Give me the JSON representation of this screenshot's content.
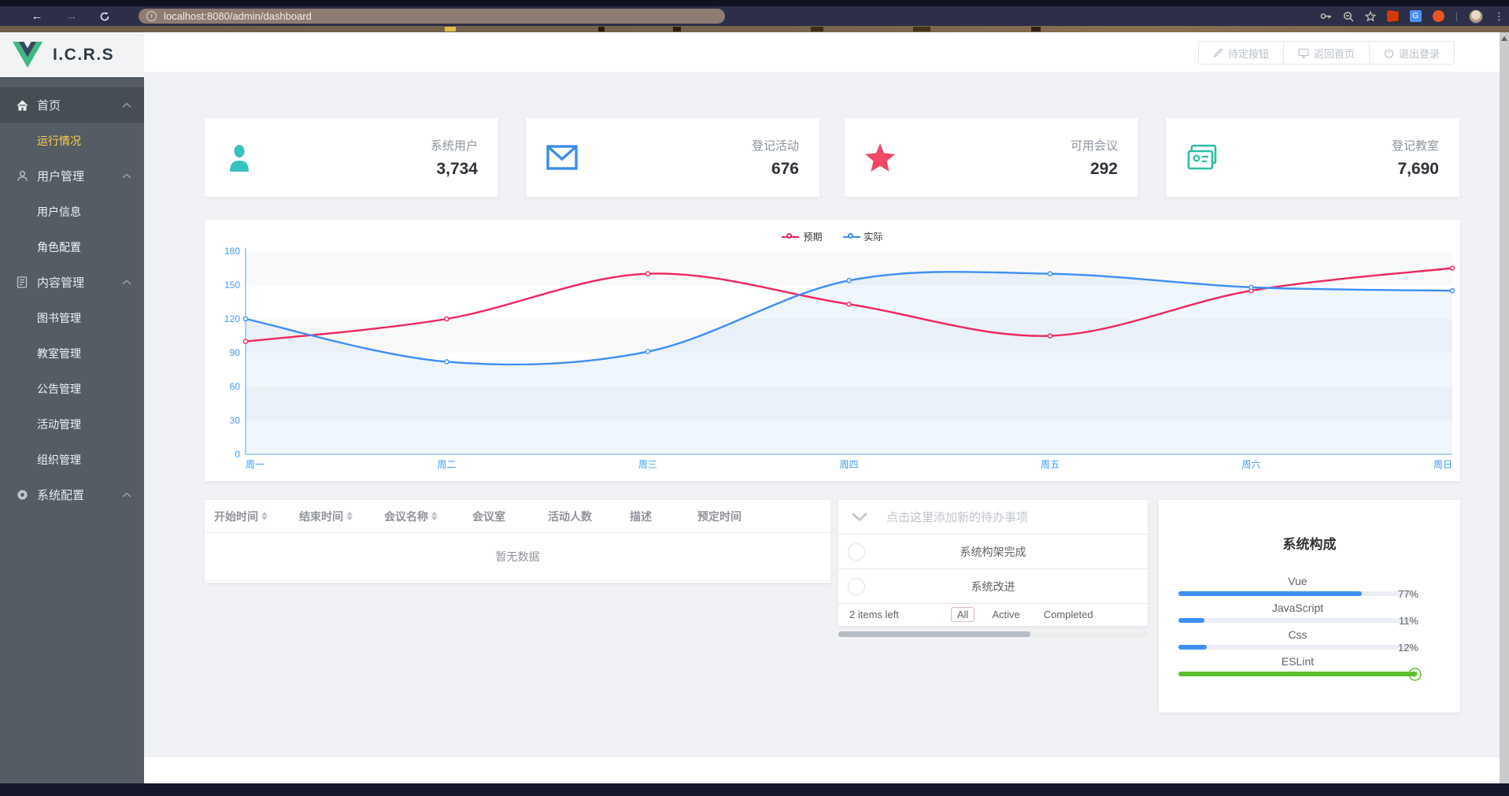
{
  "browser": {
    "url": "localhost:8080/admin/dashboard",
    "info_glyph": "i",
    "nav": {
      "back": "←",
      "forward": "→"
    },
    "right_icons": [
      "key-icon",
      "zoom-out-icon",
      "bookmark-star-icon",
      "office-extension-icon",
      "translate-extension-icon",
      "browser-extension-icon",
      "profile-avatar",
      "menu-dots-icon"
    ],
    "translate_glyph": "G",
    "dots_glyph": "⋮",
    "separator": "|"
  },
  "sidebar": {
    "logo_text": "I.C.R.S",
    "menu": [
      {
        "label": "首页",
        "type": "section",
        "icon": "home-icon",
        "state": "open"
      },
      {
        "label": "运行情况",
        "type": "sub",
        "active": true
      },
      {
        "label": "用户管理",
        "type": "section",
        "icon": "user-icon"
      },
      {
        "label": "用户信息",
        "type": "sub"
      },
      {
        "label": "角色配置",
        "type": "sub"
      },
      {
        "label": "内容管理",
        "type": "section",
        "icon": "document-icon"
      },
      {
        "label": "图书管理",
        "type": "sub"
      },
      {
        "label": "教室管理",
        "type": "sub"
      },
      {
        "label": "公告管理",
        "type": "sub"
      },
      {
        "label": "活动管理",
        "type": "sub"
      },
      {
        "label": "组织管理",
        "type": "sub"
      },
      {
        "label": "系统配置",
        "type": "section",
        "icon": "gear-icon"
      }
    ]
  },
  "header": {
    "buttons": [
      {
        "label": "待定按钮",
        "icon": "pencil-icon"
      },
      {
        "label": "返回首页",
        "icon": "monitor-icon"
      },
      {
        "label": "退出登录",
        "icon": "power-icon"
      }
    ]
  },
  "stat_cards": [
    {
      "label": "系统用户",
      "value": "3,734",
      "icon": "person-icon",
      "color": "#35c3bd"
    },
    {
      "label": "登记活动",
      "value": "676",
      "icon": "envelope-icon",
      "color": "#3a8ee6"
    },
    {
      "label": "可用会议",
      "value": "292",
      "icon": "star-icon",
      "color": "#f04864"
    },
    {
      "label": "登记教室",
      "value": "7,690",
      "icon": "cards-icon",
      "color": "#2bbfa4"
    }
  ],
  "chart_data": {
    "type": "line",
    "categories": [
      "周一",
      "周二",
      "周三",
      "周四",
      "周五",
      "周六",
      "周日"
    ],
    "series": [
      {
        "name": "预期",
        "color": "#f0265f",
        "values": [
          100,
          120,
          160,
          133,
          105,
          145,
          165
        ],
        "area": false
      },
      {
        "name": "实际",
        "color": "#3e8ef7",
        "values": [
          120,
          82,
          91,
          154,
          160,
          148,
          145
        ],
        "area": true
      }
    ],
    "title": "",
    "xlabel": "",
    "ylabel": "",
    "ylim": [
      0,
      180
    ],
    "ytick_interval": 30,
    "legend_position": "top",
    "grid": "horizontal-bands",
    "axis_color": "#5ba1f3",
    "tick_label_color": "#3f9bfa",
    "area_fill": "rgba(62,142,247,0.08)"
  },
  "table": {
    "columns": [
      {
        "label": "开始时间",
        "sortable": true
      },
      {
        "label": "结束时间",
        "sortable": true
      },
      {
        "label": "会议名称",
        "sortable": true
      },
      {
        "label": "会议室",
        "sortable": false
      },
      {
        "label": "活动人数",
        "sortable": false
      },
      {
        "label": "描述",
        "sortable": false
      },
      {
        "label": "预定时间",
        "sortable": false
      }
    ],
    "empty_text": "暂无数据"
  },
  "todo": {
    "placeholder": "点击这里添加新的待办事项",
    "items": [
      {
        "label": "系统构架完成",
        "done": false
      },
      {
        "label": "系统改进",
        "done": false
      }
    ],
    "items_left": "2 items left",
    "filters": [
      {
        "label": "All",
        "active": true
      },
      {
        "label": "Active",
        "active": false
      },
      {
        "label": "Completed",
        "active": false
      }
    ]
  },
  "progress_panel": {
    "title": "系统构成",
    "bars": [
      {
        "label": "Vue",
        "percent": 77,
        "display": "77%",
        "color": "#3e8ef7"
      },
      {
        "label": "JavaScript",
        "percent": 11,
        "display": "11%",
        "color": "#3e8ef7"
      },
      {
        "label": "Css",
        "percent": 12,
        "display": "12%",
        "color": "#3e8ef7"
      },
      {
        "label": "ESLint",
        "percent": 100,
        "display": "check",
        "color": "#5dbe2d"
      }
    ]
  }
}
